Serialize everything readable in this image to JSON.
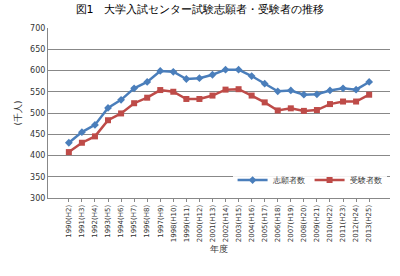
{
  "chart_data": {
    "type": "line",
    "title": "図1　大学入試センター試験志願者・受験者の推移",
    "x_label": "年度",
    "y_label": "(千人)",
    "categories": [
      "1990(H2)",
      "1991(H3)",
      "1992(H4)",
      "1993(H5)",
      "1994(H6)",
      "1995(H7)",
      "1996(H8)",
      "1997(H9)",
      "1998(H10)",
      "1999(H11)",
      "2000(H12)",
      "2001(H13)",
      "2002(H14)",
      "2003(H15)",
      "2004(H16)",
      "2005(H17)",
      "2006(H18)",
      "2007(H19)",
      "2008(H20)",
      "2009(H21)",
      "2010(H22)",
      "2011(H23)",
      "2012(H24)",
      "2013(H25)"
    ],
    "series": [
      {
        "name": "志願者数",
        "color": "#4a7ebb",
        "marker": "diamond",
        "values": [
          430,
          455,
          472,
          512,
          531,
          558,
          573,
          599,
          597,
          580,
          582,
          590,
          602,
          602,
          587,
          569,
          551,
          553,
          543,
          544,
          553,
          558,
          555,
          573
        ]
      },
      {
        "name": "受験者数",
        "color": "#be4b48",
        "marker": "square",
        "values": [
          408,
          430,
          445,
          483,
          499,
          523,
          536,
          554,
          550,
          533,
          533,
          541,
          555,
          556,
          541,
          525,
          506,
          511,
          505,
          507,
          521,
          527,
          527,
          543
        ]
      }
    ],
    "ylim": [
      300,
      700
    ],
    "yticks": [
      300,
      350,
      400,
      450,
      500,
      550,
      600,
      650,
      700
    ],
    "grid": true,
    "legend": "bottom right"
  }
}
